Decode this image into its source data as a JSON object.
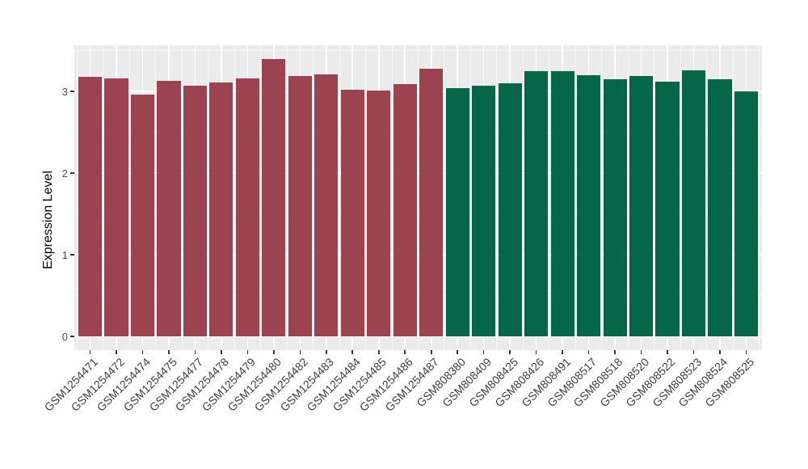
{
  "chart_data": {
    "type": "bar",
    "title": "",
    "xlabel": "",
    "ylabel": "Expression Level",
    "ylim": [
      0,
      3.5
    ],
    "yticks": [
      0,
      1,
      2,
      3
    ],
    "yticks_minor": [
      0.5,
      1.5,
      2.5,
      3.5
    ],
    "grid": "white major and minor gridlines on gray panel",
    "legend_position": "none",
    "panel_background": "#EBEBEB",
    "gridline_color": "#FFFFFF",
    "axis_text_color": "#4D4D4D",
    "tick_mark_color": "#333333",
    "groups": {
      "GSM1254": {
        "color": "#9C4352"
      },
      "GSM808": {
        "color": "#056648"
      }
    },
    "points": [
      {
        "label": "GSM1254471",
        "value": 3.18,
        "group": "GSM1254"
      },
      {
        "label": "GSM1254472",
        "value": 3.16,
        "group": "GSM1254"
      },
      {
        "label": "GSM1254474",
        "value": 2.96,
        "group": "GSM1254"
      },
      {
        "label": "GSM1254475",
        "value": 3.13,
        "group": "GSM1254"
      },
      {
        "label": "GSM1254477",
        "value": 3.07,
        "group": "GSM1254"
      },
      {
        "label": "GSM1254478",
        "value": 3.11,
        "group": "GSM1254"
      },
      {
        "label": "GSM1254479",
        "value": 3.16,
        "group": "GSM1254"
      },
      {
        "label": "GSM1254480",
        "value": 3.4,
        "group": "GSM1254"
      },
      {
        "label": "GSM1254482",
        "value": 3.19,
        "group": "GSM1254"
      },
      {
        "label": "GSM1254483",
        "value": 3.21,
        "group": "GSM1254"
      },
      {
        "label": "GSM1254484",
        "value": 3.02,
        "group": "GSM1254"
      },
      {
        "label": "GSM1254485",
        "value": 3.01,
        "group": "GSM1254"
      },
      {
        "label": "GSM1254486",
        "value": 3.09,
        "group": "GSM1254"
      },
      {
        "label": "GSM1254487",
        "value": 3.28,
        "group": "GSM1254"
      },
      {
        "label": "GSM808380",
        "value": 3.04,
        "group": "GSM808"
      },
      {
        "label": "GSM808409",
        "value": 3.07,
        "group": "GSM808"
      },
      {
        "label": "GSM808425",
        "value": 3.1,
        "group": "GSM808"
      },
      {
        "label": "GSM808426",
        "value": 3.25,
        "group": "GSM808"
      },
      {
        "label": "GSM808491",
        "value": 3.25,
        "group": "GSM808"
      },
      {
        "label": "GSM808517",
        "value": 3.2,
        "group": "GSM808"
      },
      {
        "label": "GSM808518",
        "value": 3.15,
        "group": "GSM808"
      },
      {
        "label": "GSM808520",
        "value": 3.19,
        "group": "GSM808"
      },
      {
        "label": "GSM808522",
        "value": 3.12,
        "group": "GSM808"
      },
      {
        "label": "GSM808523",
        "value": 3.26,
        "group": "GSM808"
      },
      {
        "label": "GSM808524",
        "value": 3.15,
        "group": "GSM808"
      },
      {
        "label": "GSM808525",
        "value": 3.0,
        "group": "GSM808"
      }
    ]
  }
}
